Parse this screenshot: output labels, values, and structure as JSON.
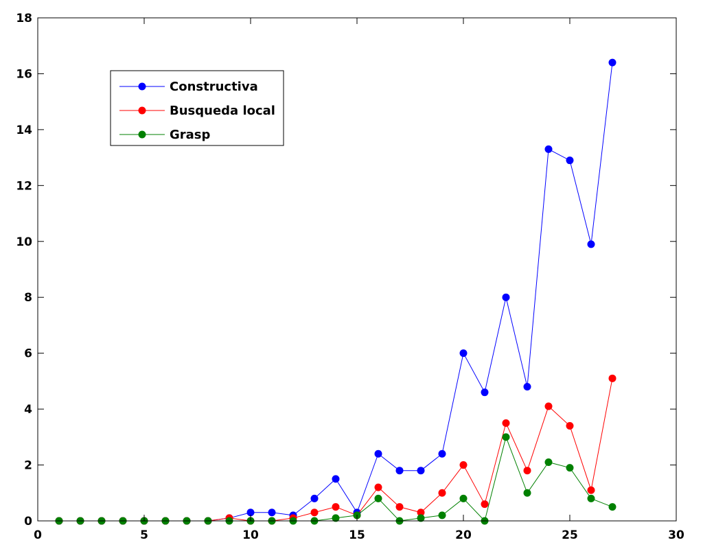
{
  "chart_data": {
    "type": "line",
    "title": "",
    "xlabel": "",
    "ylabel": "",
    "xlim": [
      0,
      30
    ],
    "ylim": [
      0,
      18
    ],
    "xticks": [
      0,
      5,
      10,
      15,
      20,
      25,
      30
    ],
    "yticks": [
      0,
      2,
      4,
      6,
      8,
      10,
      12,
      14,
      16,
      18
    ],
    "grid": false,
    "legend_position": "top-left",
    "x": [
      1,
      2,
      3,
      4,
      5,
      6,
      7,
      8,
      9,
      10,
      11,
      12,
      13,
      14,
      15,
      16,
      17,
      18,
      19,
      20,
      21,
      22,
      23,
      24,
      25,
      26,
      27
    ],
    "series": [
      {
        "name": "Constructiva",
        "color": "#0000ff",
        "values": [
          0,
          0,
          0,
          0,
          0,
          0,
          0,
          0,
          0.1,
          0.3,
          0.3,
          0.2,
          0.8,
          1.5,
          0.3,
          2.4,
          1.8,
          1.8,
          2.4,
          6.0,
          4.6,
          8.0,
          4.8,
          13.3,
          12.9,
          9.9,
          16.4
        ]
      },
      {
        "name": "Busqueda local",
        "color": "#ff0000",
        "values": [
          0,
          0,
          0,
          0,
          0,
          0,
          0,
          0,
          0.1,
          0,
          0,
          0.1,
          0.3,
          0.5,
          0.2,
          1.2,
          0.5,
          0.3,
          1.0,
          2.0,
          0.6,
          3.5,
          1.8,
          4.1,
          3.4,
          1.1,
          5.1
        ]
      },
      {
        "name": "Grasp",
        "color": "#008000",
        "values": [
          0,
          0,
          0,
          0,
          0,
          0,
          0,
          0,
          0,
          0,
          0,
          0,
          0,
          0.1,
          0.2,
          0.8,
          0,
          0.1,
          0.2,
          0.8,
          0,
          3.0,
          1.0,
          2.1,
          1.9,
          0.8,
          0.5
        ]
      }
    ]
  }
}
